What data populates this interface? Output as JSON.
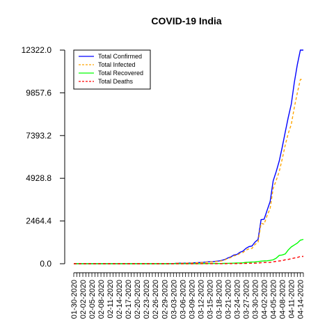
{
  "chart_data": {
    "type": "line",
    "title": "COVID-19 India",
    "xlabel": "",
    "ylabel": "",
    "ylim": [
      0,
      12322
    ],
    "yticks": [
      "0.0",
      "2464.4",
      "4928.8",
      "7393.2",
      "9857.6",
      "12322.0"
    ],
    "ytick_values": [
      0,
      2464.4,
      4928.8,
      7393.2,
      9857.6,
      12322.0
    ],
    "x": [
      "01-30-2020",
      "01-31-2020",
      "02-01-2020",
      "02-02-2020",
      "02-03-2020",
      "02-04-2020",
      "02-05-2020",
      "02-06-2020",
      "02-07-2020",
      "02-08-2020",
      "02-09-2020",
      "02-10-2020",
      "02-11-2020",
      "02-12-2020",
      "02-13-2020",
      "02-14-2020",
      "02-15-2020",
      "02-16-2020",
      "02-17-2020",
      "02-18-2020",
      "02-19-2020",
      "02-20-2020",
      "02-21-2020",
      "02-22-2020",
      "02-23-2020",
      "02-24-2020",
      "02-25-2020",
      "02-26-2020",
      "02-27-2020",
      "02-28-2020",
      "02-29-2020",
      "03-01-2020",
      "03-02-2020",
      "03-03-2020",
      "03-04-2020",
      "03-05-2020",
      "03-06-2020",
      "03-07-2020",
      "03-08-2020",
      "03-09-2020",
      "03-10-2020",
      "03-11-2020",
      "03-12-2020",
      "03-13-2020",
      "03-14-2020",
      "03-15-2020",
      "03-16-2020",
      "03-17-2020",
      "03-18-2020",
      "03-19-2020",
      "03-20-2020",
      "03-21-2020",
      "03-22-2020",
      "03-23-2020",
      "03-24-2020",
      "03-25-2020",
      "03-26-2020",
      "03-27-2020",
      "03-28-2020",
      "03-29-2020",
      "03-30-2020",
      "03-31-2020",
      "04-01-2020",
      "04-02-2020",
      "04-03-2020",
      "04-04-2020",
      "04-05-2020",
      "04-06-2020",
      "04-07-2020",
      "04-08-2020",
      "04-09-2020",
      "04-10-2020",
      "04-11-2020",
      "04-12-2020",
      "04-13-2020",
      "04-14-2020",
      "04-15-2020"
    ],
    "xtick_labels_shown": [
      "01-30-2020",
      "02-02-2020",
      "02-05-2020",
      "02-08-2020",
      "02-11-2020",
      "02-14-2020",
      "02-17-2020",
      "02-20-2020",
      "02-23-2020",
      "02-26-2020",
      "02-29-2020",
      "03-03-2020",
      "03-06-2020",
      "03-09-2020",
      "03-12-2020",
      "03-15-2020",
      "03-18-2020",
      "03-21-2020",
      "03-24-2020",
      "03-27-2020",
      "03-30-2020",
      "04-02-2020",
      "04-05-2020",
      "04-08-2020",
      "04-11-2020",
      "04-14-2020"
    ],
    "series": [
      {
        "name": "Total Confirmed",
        "color": "#0000ff",
        "dash": "solid",
        "values": [
          1,
          1,
          2,
          3,
          3,
          3,
          3,
          3,
          3,
          3,
          3,
          3,
          3,
          3,
          3,
          3,
          3,
          3,
          3,
          3,
          3,
          3,
          3,
          3,
          3,
          3,
          3,
          3,
          3,
          3,
          3,
          3,
          5,
          5,
          28,
          30,
          31,
          34,
          39,
          43,
          56,
          62,
          73,
          82,
          102,
          113,
          119,
          142,
          156,
          194,
          244,
          330,
          396,
          499,
          536,
          657,
          727,
          887,
          987,
          1024,
          1251,
          1397,
          2543,
          2567,
          3082,
          3588,
          4778,
          5311,
          5916,
          6725,
          7598,
          8446,
          9205,
          10453,
          11487,
          12322,
          12322
        ]
      },
      {
        "name": "Total Infected",
        "color": "#ffa500",
        "dash": "dashed",
        "values": [
          1,
          1,
          2,
          3,
          3,
          3,
          3,
          3,
          3,
          3,
          3,
          3,
          3,
          3,
          3,
          3,
          3,
          3,
          3,
          3,
          3,
          3,
          3,
          3,
          3,
          3,
          3,
          3,
          3,
          3,
          3,
          3,
          2,
          2,
          25,
          27,
          28,
          31,
          36,
          40,
          52,
          57,
          63,
          69,
          88,
          99,
          100,
          124,
          140,
          170,
          222,
          298,
          358,
          456,
          486,
          594,
          650,
          778,
          862,
          884,
          1118,
          1232,
          2328,
          2280,
          2781,
          3188,
          4344,
          4803,
          5314,
          6044,
          6846,
          7521,
          8040,
          9012,
          9860,
          10629,
          10629
        ]
      },
      {
        "name": "Total Recovered",
        "color": "#00ff00",
        "dash": "solid",
        "values": [
          0,
          0,
          0,
          0,
          0,
          0,
          0,
          0,
          0,
          0,
          0,
          0,
          0,
          0,
          0,
          0,
          0,
          0,
          0,
          0,
          0,
          0,
          0,
          0,
          0,
          0,
          0,
          0,
          0,
          0,
          0,
          0,
          3,
          3,
          3,
          3,
          3,
          3,
          3,
          3,
          4,
          4,
          4,
          10,
          10,
          13,
          14,
          15,
          14,
          15,
          20,
          23,
          27,
          34,
          40,
          43,
          50,
          78,
          88,
          99,
          102,
          124,
          150,
          163,
          169,
          191,
          225,
          320,
          479,
          506,
          565,
          795,
          969,
          1080,
          1190,
          1359,
          1400
        ]
      },
      {
        "name": "Total Deaths",
        "color": "#ff0000",
        "dash": "dashed",
        "values": [
          0,
          0,
          0,
          0,
          0,
          0,
          0,
          0,
          0,
          0,
          0,
          0,
          0,
          0,
          0,
          0,
          0,
          0,
          0,
          0,
          0,
          0,
          0,
          0,
          0,
          0,
          0,
          0,
          0,
          0,
          0,
          0,
          0,
          0,
          0,
          0,
          0,
          0,
          0,
          0,
          0,
          1,
          1,
          2,
          2,
          2,
          2,
          3,
          3,
          4,
          5,
          6,
          7,
          9,
          10,
          12,
          20,
          20,
          24,
          27,
          32,
          35,
          58,
          72,
          72,
          77,
          111,
          136,
          160,
          178,
          226,
          249,
          288,
          331,
          358,
          422,
          422
        ]
      }
    ],
    "legend_position": "top-left",
    "grid": false
  }
}
